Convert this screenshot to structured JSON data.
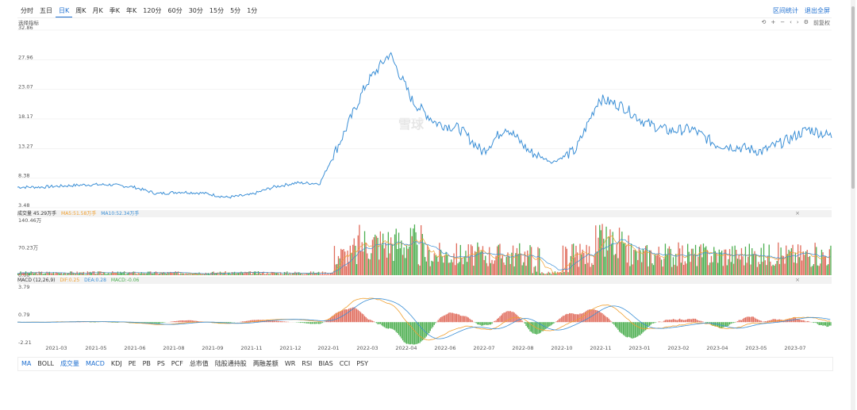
{
  "period_tabs": [
    "分时",
    "五日",
    "日K",
    "周K",
    "月K",
    "季K",
    "年K",
    "120分",
    "60分",
    "30分",
    "15分",
    "5分",
    "1分"
  ],
  "active_period": "日K",
  "top_actions": {
    "range_stats": "区间统计",
    "exit_fullscreen": "退出全屏"
  },
  "price_panel": {
    "label": "选择指标",
    "y_ticks": [
      "32.86",
      "27.96",
      "23.07",
      "18.17",
      "13.27",
      "8.38",
      "3.48"
    ],
    "adjust": "前复权"
  },
  "watermark": "雪球",
  "volume_panel": {
    "legend_vol": "成交量 45.29万手",
    "legend_ma5": "MA5:51.58万手",
    "legend_ma10": "MA10:52.34万手",
    "y_ticks": [
      "140.46万",
      "70.23万",
      "0.00"
    ],
    "close": "×"
  },
  "macd_panel": {
    "legend_name": "MACD (12,26,9)",
    "legend_dif": "DIF:0.25",
    "legend_dea": "DEA:0.28",
    "legend_macd": "MACD:-0.06",
    "y_ticks": [
      "3.79",
      "0.79",
      "-2.21"
    ],
    "close": "×"
  },
  "x_ticks": [
    "2021-03",
    "2021-05",
    "2021-06",
    "2021-08",
    "2021-09",
    "2021-11",
    "2021-12",
    "2022-01",
    "2022-03",
    "2022-04",
    "2022-06",
    "2022-07",
    "2022-08",
    "2022-10",
    "2022-11",
    "2023-01",
    "2023-02",
    "2023-04",
    "2023-05",
    "2023-07"
  ],
  "indicator_tabs": [
    "MA",
    "BOLL",
    "成交量",
    "MACD",
    "KDJ",
    "PE",
    "PB",
    "PS",
    "PCF",
    "总市值",
    "陆股通持股",
    "两融差额",
    "WR",
    "RSI",
    "BIAS",
    "CCI",
    "PSY"
  ],
  "active_indicators": [
    "MA",
    "成交量",
    "MACD"
  ],
  "colors": {
    "price": "#3b8fd6",
    "up": "#e06c5c",
    "down": "#4caf50",
    "ma5": "#f0a030",
    "ma10": "#3b8fd6",
    "accent": "#1e6fd0"
  },
  "chart_data": {
    "type": "line",
    "x": [
      "2021-02",
      "2021-03",
      "2021-04",
      "2021-05",
      "2021-06",
      "2021-07",
      "2021-08",
      "2021-09",
      "2021-10",
      "2021-11",
      "2021-12",
      "2022-01",
      "2022-02",
      "2022-03",
      "2022-03b",
      "2022-04",
      "2022-04b",
      "2022-05",
      "2022-05b",
      "2022-06",
      "2022-07",
      "2022-08",
      "2022-09",
      "2022-10",
      "2022-10b",
      "2022-11",
      "2022-11b",
      "2022-12",
      "2023-01",
      "2023-02",
      "2023-03",
      "2023-04",
      "2023-05",
      "2023-06",
      "2023-07",
      "2023-08"
    ],
    "series": [
      {
        "values": [
          6.9,
          6.9,
          7.1,
          7.3,
          7.3,
          6.9,
          5.8,
          6.1,
          5.9,
          5.2,
          5.6,
          6.9,
          7.6,
          7.5,
          15.5,
          24,
          29,
          21,
          17.5,
          16.6,
          12.7,
          16.9,
          12.8,
          11,
          13,
          21.5,
          20.3,
          17.5,
          16.2,
          16.5,
          14,
          13.5,
          12.8,
          14.5,
          16.5,
          15.3
        ]
      }
    ],
    "ylim": [
      3.48,
      32.86
    ]
  }
}
